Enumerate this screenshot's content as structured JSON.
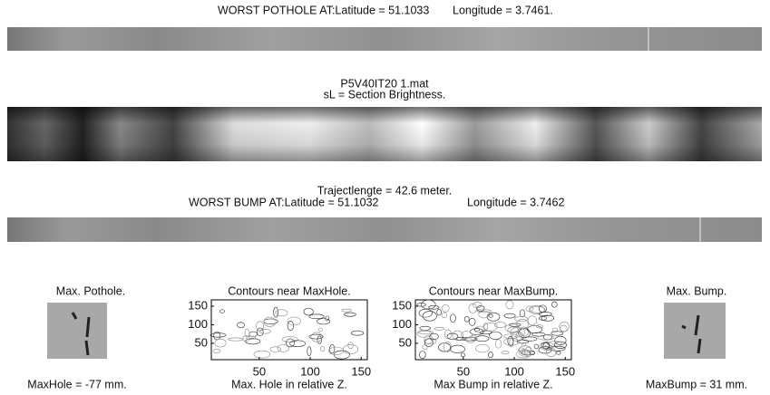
{
  "header": {
    "pothole_latitude": "WORST POTHOLE AT:Latitude = 51.1033",
    "pothole_longitude": "Longitude = 3.7461."
  },
  "section": {
    "file": "P5V40IT20 1.mat",
    "subtitle": "sL = Section Brightness."
  },
  "trajectory": {
    "length": "Trajectlengte = 42.6 meter.",
    "bump_latitude": "WORST BUMP AT:Latitude = 51.1032",
    "bump_longitude": "Longitude = 3.7462"
  },
  "panels": [
    {
      "title": "Max. Pothole.",
      "caption": "MaxHole = -77 mm."
    },
    {
      "title": "Contours near MaxHole.",
      "xlabel": "Max. Hole in relative Z.",
      "xlim": [
        3,
        156
      ],
      "ylim": [
        6,
        167
      ],
      "xticks": [
        50,
        100,
        150
      ],
      "yticks": [
        50,
        100,
        150
      ]
    },
    {
      "title": "Contours near MaxBump.",
      "xlabel": "Max Bump in relative Z.",
      "xlim": [
        3,
        156
      ],
      "ylim": [
        6,
        167
      ],
      "xticks": [
        50,
        100,
        150
      ],
      "yticks": [
        50,
        100,
        150
      ]
    },
    {
      "title": "Max. Bump.",
      "caption": "MaxBump = 31 mm."
    }
  ]
}
